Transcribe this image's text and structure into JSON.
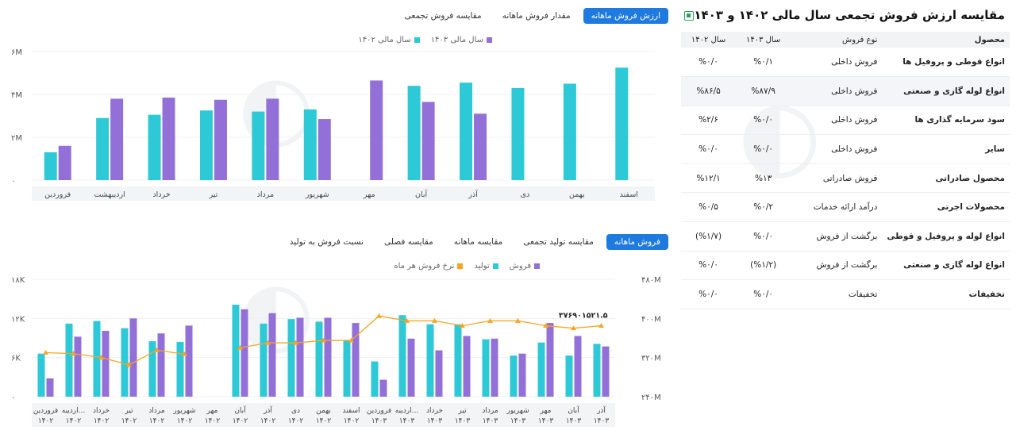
{
  "top_tabs": [
    {
      "label": "ارزش فروش ماهانه",
      "active": true
    },
    {
      "label": "مقدار فروش ماهانه",
      "active": false
    },
    {
      "label": "مقایسه فروش تجمعی",
      "active": false
    }
  ],
  "bottom_tabs": [
    {
      "label": "فروش ماهانه",
      "active": true
    },
    {
      "label": "مقایسه تولید تجمعی",
      "active": false
    },
    {
      "label": "مقایسه ماهانه",
      "active": false
    },
    {
      "label": "مقایسه فصلی",
      "active": false
    },
    {
      "label": "نسبت فروش به تولید",
      "active": false
    }
  ],
  "top_legend": [
    {
      "label": "سال مالی ۱۴۰۳",
      "color": "#9370d8"
    },
    {
      "label": "سال مالی ۱۴۰۲",
      "color": "#2ec9d6"
    }
  ],
  "bottom_legend": [
    {
      "label": "فروش",
      "color": "#9370d8"
    },
    {
      "label": "تولید",
      "color": "#2ec9d6"
    },
    {
      "label": "نرخ فروش هر ماه",
      "color": "#f5a623"
    }
  ],
  "chart_data": [
    {
      "type": "bar",
      "categories": [
        "فروردین",
        "اردیبهشت",
        "خرداد",
        "تیر",
        "مرداد",
        "شهریور",
        "مهر",
        "آبان",
        "آذر",
        "دی",
        "بهمن",
        "اسفند"
      ],
      "series": [
        {
          "name": "سال مالی ۱۴۰۲",
          "color": "#2ec9d6",
          "values": [
            1.3,
            2.9,
            3.05,
            3.25,
            3.2,
            3.3,
            null,
            4.4,
            4.55,
            4.3,
            4.5,
            5.25
          ]
        },
        {
          "name": "سال مالی ۱۴۰۳",
          "color": "#9370d8",
          "values": [
            1.6,
            3.8,
            3.85,
            3.75,
            3.8,
            2.85,
            4.65,
            3.65,
            3.1,
            null,
            null,
            null
          ]
        }
      ],
      "yticks": [
        "۶M",
        "۴M",
        "۲M",
        "۰"
      ],
      "ylim": [
        0,
        6
      ]
    },
    {
      "type": "bar",
      "categories": [
        [
          "فروردین",
          "۱۴۰۲"
        ],
        [
          "اردیبه...",
          "۱۴۰۲"
        ],
        [
          "خرداد",
          "۱۴۰۲"
        ],
        [
          "تیر",
          "۱۴۰۲"
        ],
        [
          "مرداد",
          "۱۴۰۲"
        ],
        [
          "شهریور",
          "۱۴۰۲"
        ],
        [
          "مهر",
          "۱۴۰۲"
        ],
        [
          "آبان",
          "۱۴۰۲"
        ],
        [
          "آذر",
          "۱۴۰۲"
        ],
        [
          "دی",
          "۱۴۰۲"
        ],
        [
          "بهمن",
          "۱۴۰۲"
        ],
        [
          "اسفند",
          "۱۴۰۲"
        ],
        [
          "فروردین",
          "۱۴۰۳"
        ],
        [
          "اردیبه...",
          "۱۴۰۳"
        ],
        [
          "خرداد",
          "۱۴۰۳"
        ],
        [
          "تیر",
          "۱۴۰۳"
        ],
        [
          "مرداد",
          "۱۴۰۳"
        ],
        [
          "شهریور",
          "۱۴۰۳"
        ],
        [
          "مهر",
          "۱۴۰۳"
        ],
        [
          "آبان",
          "۱۴۰۳"
        ],
        [
          "آذر",
          "۱۴۰۳"
        ]
      ],
      "series": [
        {
          "name": "تولید",
          "color": "#2ec9d6",
          "axis": "left",
          "values": [
            6.6,
            11.2,
            11.6,
            10.5,
            8.5,
            8.4,
            null,
            14.1,
            11.2,
            11.9,
            11.5,
            8.6,
            5.4,
            12.5,
            11.1,
            11.1,
            8.8,
            6.3,
            8.3,
            6.3,
            8.1
          ]
        },
        {
          "name": "فروش",
          "color": "#9370d8",
          "axis": "left",
          "values": [
            2.8,
            9.2,
            10.1,
            12.0,
            9.7,
            10.9,
            null,
            13.4,
            12.8,
            12.1,
            12.1,
            11.3,
            2.6,
            8.9,
            7.1,
            9.3,
            8.9,
            6.6,
            11.3,
            9.3,
            7.7
          ]
        },
        {
          "name": "نرخ فروش هر ماه",
          "color": "#f5a623",
          "axis": "right",
          "type": "line",
          "values": [
            330,
            328,
            320,
            305,
            335,
            327,
            null,
            340,
            350,
            350,
            355,
            355,
            405,
            395,
            395,
            385,
            395,
            395,
            385,
            380,
            385
          ]
        }
      ],
      "left_yticks": [
        "۱۸K",
        "۱۲K",
        "۶K",
        "۰"
      ],
      "left_ylim": [
        0,
        18
      ],
      "right_yticks": [
        "۴۸۰M",
        "۴۰۰M",
        "۳۲۰M",
        "۲۴۰M"
      ],
      "right_ylim": [
        240,
        480
      ],
      "annotation": "۳۷۶۹۰۱۵۲۱.۵"
    }
  ],
  "right_panel": {
    "title": "مقایسه ارزش فروش تجمعی سال مالی ۱۴۰۲ و ۱۴۰۳",
    "headers": [
      "محصول",
      "نوع فروش",
      "سال ۱۴۰۳",
      "سال ۱۴۰۲"
    ],
    "rows": [
      [
        "انواع قوطی و پروفیل ها",
        "فروش داخلی",
        "%۰/۱",
        "%۰/۰"
      ],
      [
        "انواع لوله گازی و صنعتی",
        "فروش داخلی",
        "%۸۷/۹",
        "%۸۶/۵"
      ],
      [
        "سود سرمایه گذاری ها",
        "فروش داخلی",
        "%۰/۰",
        "%۲/۶"
      ],
      [
        "سایر",
        "فروش داخلی",
        "%۰/۰",
        "%۰/۰"
      ],
      [
        "محصول صادراتی",
        "فروش صادراتی",
        "%۱۳",
        "%۱۲/۱"
      ],
      [
        "محصولات اجرتی",
        "درآمد ارائه خدمات",
        "%۰/۲",
        "%۰/۵"
      ],
      [
        "انواع لوله و پروفیل و قوطی",
        "برگشت از فروش",
        "%۰/۰",
        "(%۱/۷)"
      ],
      [
        "انواع لوله گازی و صنعتی",
        "برگشت از فروش",
        "(%۱/۲)",
        "%۰/۰"
      ],
      [
        "تخفیفات",
        "تخفیفات",
        "%۰/۰",
        "%۰/۰"
      ]
    ],
    "highlighted_row": 1
  }
}
